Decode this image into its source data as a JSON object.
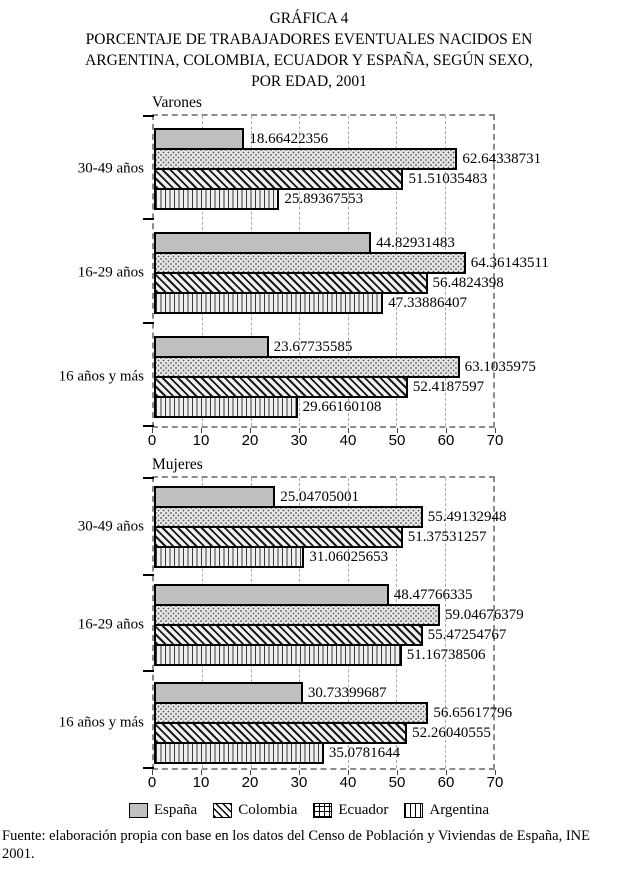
{
  "title": {
    "line1": "GRÁFICA 4",
    "line2": "PORCENTAJE DE TRABAJADORES EVENTUALES NACIDOS EN",
    "line3": "ARGENTINA, COLOMBIA, ECUADOR Y ESPAÑA, SEGÚN SEXO,",
    "line4": "POR EDAD, 2001"
  },
  "colors": {
    "bar_fill_gray": "#c0c0c0",
    "bar_border": "#000000",
    "plot_border_dashed": "#8c8c8c",
    "gridline": "#aaaaaa",
    "background": "#ffffff"
  },
  "legend": {
    "items": [
      {
        "label": "España",
        "pattern": "solid"
      },
      {
        "label": "Colombia",
        "pattern": "diagonal"
      },
      {
        "label": "Ecuador",
        "pattern": "grid"
      },
      {
        "label": "Argentina",
        "pattern": "vertical"
      }
    ]
  },
  "footer": {
    "source": "Fuente: elaboración propia con base en los datos del Censo de Población y Viviendas de España, INE 2001."
  },
  "chart_data": [
    {
      "type": "bar",
      "orientation": "horizontal",
      "title": "Varones",
      "categories": [
        "30-49 años",
        "16-29 años",
        "16 años y más"
      ],
      "series_display_order": "top to bottom within each category group",
      "series": [
        {
          "name": "España",
          "pattern": "solid",
          "values": [
            18.66422356,
            44.82931483,
            23.67735585
          ]
        },
        {
          "name": "Ecuador",
          "pattern": "grid",
          "values": [
            62.64338731,
            64.36143511,
            63.1035975
          ]
        },
        {
          "name": "Colombia",
          "pattern": "diagonal",
          "values": [
            51.51035483,
            56.4824398,
            52.4187597
          ]
        },
        {
          "name": "Argentina",
          "pattern": "vertical",
          "values": [
            25.89367553,
            47.33886407,
            29.66160108
          ]
        }
      ],
      "xlim": [
        0,
        70
      ],
      "xticks": [
        0,
        10,
        20,
        30,
        40,
        50,
        60,
        70
      ],
      "grid": true,
      "data_labels": true
    },
    {
      "type": "bar",
      "orientation": "horizontal",
      "title": "Mujeres",
      "categories": [
        "30-49 años",
        "16-29 años",
        "16 años y más"
      ],
      "series_display_order": "top to bottom within each category group",
      "series": [
        {
          "name": "España",
          "pattern": "solid",
          "values": [
            25.04705001,
            48.47766335,
            30.73399687
          ]
        },
        {
          "name": "Ecuador",
          "pattern": "grid",
          "values": [
            55.49132948,
            59.04676379,
            56.65617796
          ]
        },
        {
          "name": "Colombia",
          "pattern": "diagonal",
          "values": [
            51.37531257,
            55.47254767,
            52.26040555
          ]
        },
        {
          "name": "Argentina",
          "pattern": "vertical",
          "values": [
            31.06025653,
            51.16738506,
            35.0781644
          ]
        }
      ],
      "xlim": [
        0,
        70
      ],
      "xticks": [
        0,
        10,
        20,
        30,
        40,
        50,
        60,
        70
      ],
      "grid": true,
      "data_labels": true
    }
  ]
}
